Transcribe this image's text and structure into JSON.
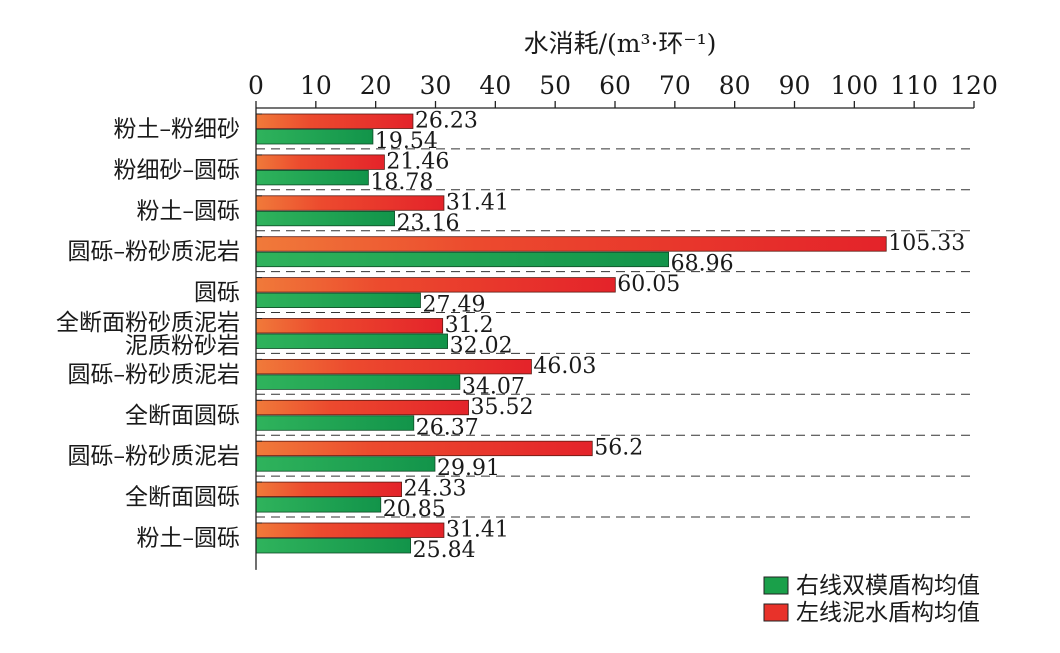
{
  "chart_data": {
    "type": "bar",
    "orientation": "horizontal",
    "title": "水消耗/(m³·环⁻¹)",
    "xlabel": "水消耗/(m³·环⁻¹)",
    "ylabel": "",
    "xlim": [
      0,
      120
    ],
    "xticks": [
      0,
      10,
      20,
      30,
      40,
      50,
      60,
      70,
      80,
      90,
      100,
      110,
      120
    ],
    "categories": [
      [
        "粉土–粉细砂"
      ],
      [
        "粉细砂–圆砾"
      ],
      [
        "粉土–圆砾"
      ],
      [
        "圆砾–粉砂质泥岩"
      ],
      [
        "圆砾"
      ],
      [
        "全断面粉砂质泥岩",
        "泥质粉砂岩"
      ],
      [
        "圆砾–粉砂质泥岩"
      ],
      [
        "全断面圆砾"
      ],
      [
        "圆砾–粉砂质泥岩"
      ],
      [
        "全断面圆砾"
      ],
      [
        "粉土–圆砾"
      ]
    ],
    "series": [
      {
        "name": "左线泥水盾构均值",
        "color": "#e8322a",
        "values": [
          26.23,
          21.46,
          31.41,
          105.33,
          60.05,
          31.2,
          46.03,
          35.52,
          56.2,
          24.33,
          31.41
        ],
        "labels": [
          "26.23",
          "21.46",
          "31.41",
          "105.33",
          "60.05",
          "31.2",
          "46.03",
          "35.52",
          "56.2",
          "24.33",
          "31.41"
        ]
      },
      {
        "name": "右线双模盾构均值",
        "color": "#1aa04a",
        "values": [
          19.54,
          18.78,
          23.16,
          68.96,
          27.49,
          32.02,
          34.07,
          26.37,
          29.91,
          20.85,
          25.84
        ],
        "labels": [
          "19.54",
          "18.78",
          "23.16",
          "68.96",
          "27.49",
          "32.02",
          "34.07",
          "26.37",
          "29.91",
          "20.85",
          "25.84"
        ]
      }
    ],
    "legend": {
      "placement": "bottom-right",
      "order": [
        "右线双模盾构均值",
        "左线泥水盾构均值"
      ]
    },
    "grid": {
      "horizontal_dashed_separators": true
    }
  }
}
